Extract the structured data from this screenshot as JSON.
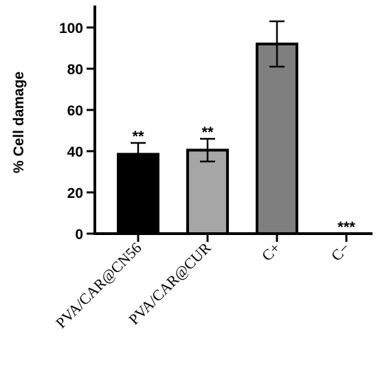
{
  "chart_data": {
    "type": "bar",
    "ylabel": "% Cell damage",
    "xlabel": "",
    "ylim": [
      0,
      110
    ],
    "yticks": [
      0,
      20,
      40,
      60,
      80,
      100
    ],
    "categories": [
      "PVA/CAR@CN56",
      "PVA/CAR@CUR",
      "C+",
      "C−"
    ],
    "values": [
      38.5,
      40.5,
      92,
      0
    ],
    "errors": [
      5.5,
      5.5,
      11,
      0
    ],
    "significance": [
      "**",
      "**",
      "",
      "***"
    ],
    "colors": [
      "#000000",
      "#a6a6a6",
      "#7f7f7f",
      "#ffffff"
    ],
    "grid": false
  }
}
